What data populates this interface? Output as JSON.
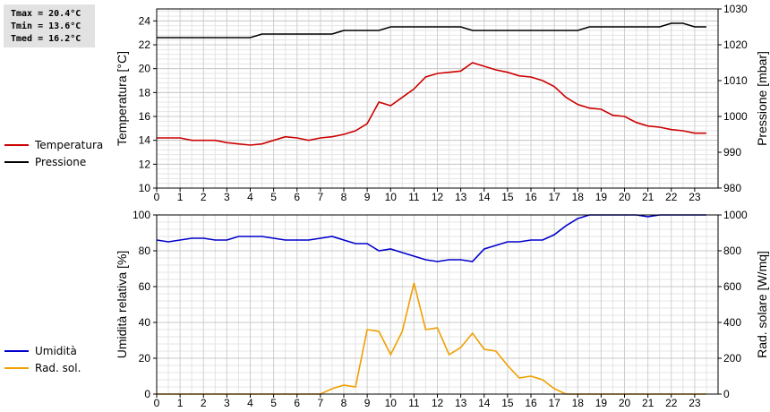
{
  "stats": {
    "tmax": "Tmax = 20.4°C",
    "tmin": "Tmin = 13.6°C",
    "tmed": "Tmed = 16.2°C"
  },
  "chart_data": [
    {
      "type": "line",
      "xlabel": "",
      "xlim": [
        0,
        24
      ],
      "x_ticks": [
        "0",
        "1",
        "2",
        "3",
        "4",
        "5",
        "6",
        "7",
        "8",
        "9",
        "10",
        "11",
        "12",
        "13",
        "14",
        "15",
        "16",
        "17",
        "18",
        "19",
        "20",
        "21",
        "22",
        "23"
      ],
      "y_left": {
        "label": "Temperatura [°C]",
        "lim": [
          10,
          25
        ],
        "ticks": [
          "10",
          "12",
          "14",
          "16",
          "18",
          "20",
          "22",
          "24"
        ]
      },
      "y_right": {
        "label": "Pressione [mbar]",
        "lim": [
          980,
          1030
        ],
        "ticks": [
          "980",
          "990",
          "1000",
          "1010",
          "1020",
          "1030"
        ]
      },
      "grid": true,
      "legend_placement": "left",
      "series": [
        {
          "name": "Temperatura",
          "axis": "left",
          "color": "#cc0000",
          "x": [
            0,
            0.5,
            1,
            1.5,
            2,
            2.5,
            3,
            3.5,
            4,
            4.5,
            5,
            5.5,
            6,
            6.5,
            7,
            7.5,
            8,
            8.5,
            9,
            9.5,
            10,
            10.5,
            11,
            11.5,
            12,
            12.5,
            13,
            13.5,
            14,
            14.5,
            15,
            15.5,
            16,
            16.5,
            17,
            17.5,
            18,
            18.5,
            19,
            19.5,
            20,
            20.5,
            21,
            21.5,
            22,
            22.5,
            23,
            23.5
          ],
          "values": [
            14.2,
            14.2,
            14.2,
            14.0,
            14.0,
            14.0,
            13.8,
            13.7,
            13.6,
            13.7,
            14.0,
            14.3,
            14.2,
            14.0,
            14.2,
            14.3,
            14.5,
            14.8,
            15.4,
            17.2,
            16.9,
            17.6,
            18.3,
            19.3,
            19.6,
            19.7,
            19.8,
            20.5,
            20.2,
            19.9,
            19.7,
            19.4,
            19.3,
            19.0,
            18.5,
            17.6,
            17.0,
            16.7,
            16.6,
            16.1,
            16.0,
            15.5,
            15.2,
            15.1,
            14.9,
            14.8,
            14.6,
            14.6
          ]
        },
        {
          "name": "Pressione",
          "axis": "right",
          "color": "#000000",
          "x": [
            0,
            0.5,
            1,
            1.5,
            2,
            2.5,
            3,
            3.5,
            4,
            4.5,
            5,
            5.5,
            6,
            6.5,
            7,
            7.5,
            8,
            8.5,
            9,
            9.5,
            10,
            10.5,
            11,
            11.5,
            12,
            12.5,
            13,
            13.5,
            14,
            14.5,
            15,
            15.5,
            16,
            16.5,
            17,
            17.5,
            18,
            18.5,
            19,
            19.5,
            20,
            20.5,
            21,
            21.5,
            22,
            22.5,
            23,
            23.5
          ],
          "values": [
            1022,
            1022,
            1022,
            1022,
            1022,
            1022,
            1022,
            1022,
            1022,
            1023,
            1023,
            1023,
            1023,
            1023,
            1023,
            1023,
            1024,
            1024,
            1024,
            1024,
            1025,
            1025,
            1025,
            1025,
            1025,
            1025,
            1025,
            1024,
            1024,
            1024,
            1024,
            1024,
            1024,
            1024,
            1024,
            1024,
            1024,
            1025,
            1025,
            1025,
            1025,
            1025,
            1025,
            1025,
            1026,
            1026,
            1025,
            1025
          ]
        }
      ]
    },
    {
      "type": "line",
      "xlabel": "",
      "xlim": [
        0,
        24
      ],
      "x_ticks": [
        "0",
        "1",
        "2",
        "3",
        "4",
        "5",
        "6",
        "7",
        "8",
        "9",
        "10",
        "11",
        "12",
        "13",
        "14",
        "15",
        "16",
        "17",
        "18",
        "19",
        "20",
        "21",
        "22",
        "23"
      ],
      "y_left": {
        "label": "Umidità relativa [%]",
        "lim": [
          0,
          100
        ],
        "ticks": [
          "0",
          "20",
          "40",
          "60",
          "80",
          "100"
        ]
      },
      "y_right": {
        "label": "Rad. solare [W/mq]",
        "lim": [
          0,
          1000
        ],
        "ticks": [
          "0",
          "200",
          "400",
          "600",
          "800",
          "1000"
        ]
      },
      "grid": true,
      "legend_placement": "left",
      "series": [
        {
          "name": "Umidità",
          "axis": "left",
          "color": "#0000cc",
          "x": [
            0,
            0.5,
            1,
            1.5,
            2,
            2.5,
            3,
            3.5,
            4,
            4.5,
            5,
            5.5,
            6,
            6.5,
            7,
            7.5,
            8,
            8.5,
            9,
            9.5,
            10,
            10.5,
            11,
            11.5,
            12,
            12.5,
            13,
            13.5,
            14,
            14.5,
            15,
            15.5,
            16,
            16.5,
            17,
            17.5,
            18,
            18.5,
            19,
            19.5,
            20,
            20.5,
            21,
            21.5,
            22,
            22.5,
            23,
            23.5
          ],
          "values": [
            86,
            85,
            86,
            87,
            87,
            86,
            86,
            88,
            88,
            88,
            87,
            86,
            86,
            86,
            87,
            88,
            86,
            84,
            84,
            80,
            81,
            79,
            77,
            75,
            74,
            75,
            75,
            74,
            81,
            83,
            85,
            85,
            86,
            86,
            89,
            94,
            98,
            100,
            100,
            100,
            100,
            100,
            99,
            100,
            100,
            100,
            100,
            100
          ]
        },
        {
          "name": "Rad. sol.",
          "axis": "right",
          "color": "#f0a000",
          "x": [
            0,
            0.5,
            1,
            1.5,
            2,
            2.5,
            3,
            3.5,
            4,
            4.5,
            5,
            5.5,
            6,
            6.5,
            7,
            7.5,
            8,
            8.5,
            9,
            9.5,
            10,
            10.5,
            11,
            11.5,
            12,
            12.5,
            13,
            13.5,
            14,
            14.5,
            15,
            15.5,
            16,
            16.5,
            17,
            17.5,
            18,
            18.5,
            19,
            19.5,
            20,
            20.5,
            21,
            21.5,
            22,
            22.5,
            23,
            23.5
          ],
          "values": [
            0,
            0,
            0,
            0,
            0,
            0,
            0,
            0,
            0,
            0,
            0,
            0,
            0,
            0,
            0,
            30,
            50,
            40,
            360,
            350,
            220,
            350,
            620,
            360,
            370,
            220,
            260,
            340,
            250,
            240,
            160,
            90,
            100,
            80,
            30,
            0,
            0,
            0,
            0,
            0,
            0,
            0,
            0,
            0,
            0,
            0,
            0,
            0
          ]
        }
      ]
    }
  ]
}
